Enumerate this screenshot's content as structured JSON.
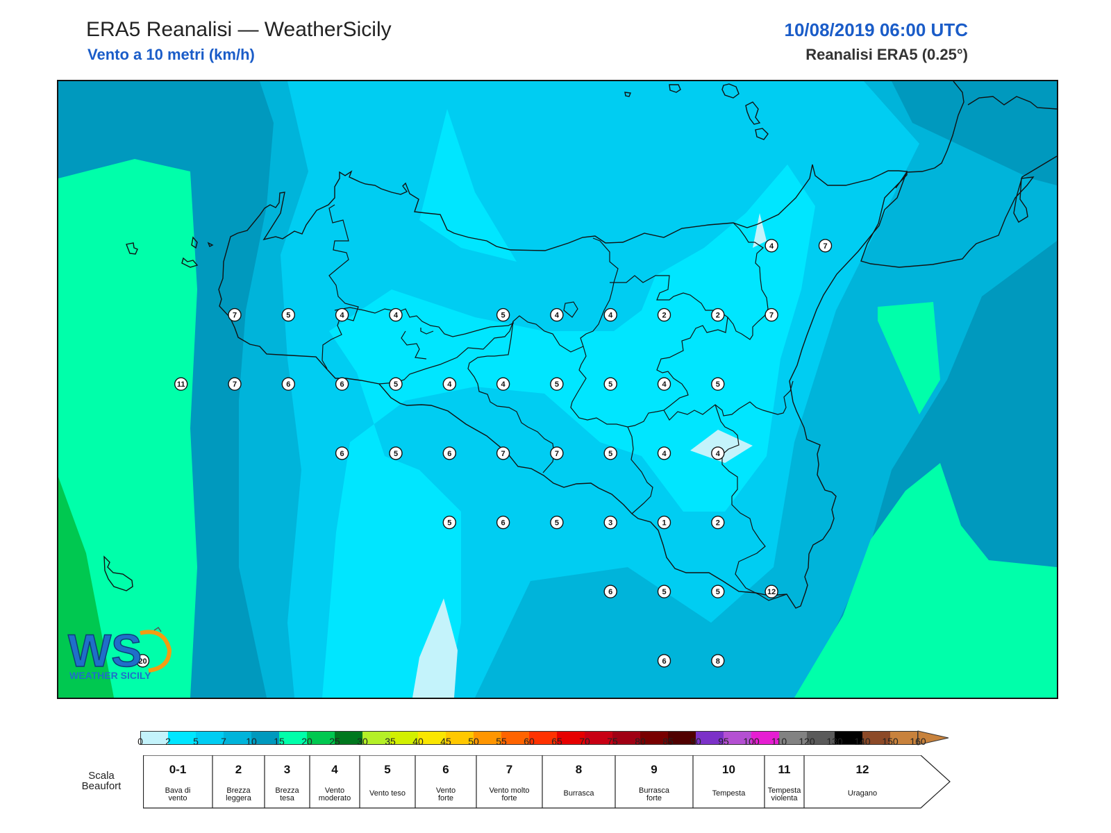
{
  "header": {
    "title": "ERA5 Reanalisi — WeatherSicily",
    "subtitle": "Vento a 10 metri (km/h)",
    "datetime": "10/08/2019 06:00 UTC",
    "source": "Reanalisi ERA5 (0.25°)"
  },
  "logo": {
    "letters": "WS",
    "text": "WEATHER SICILY"
  },
  "colors": {
    "band_0_2": "#c4f3fb",
    "band_2_5": "#00e6ff",
    "band_5_7": "#00cdf2",
    "band_7_10": "#00b4da",
    "band_10_15": "#0099be",
    "band_15_20": "#00ffaa",
    "band_20_25": "#00c850",
    "coastline": "#111111",
    "title_blue": "#1a5cc8"
  },
  "stations": [
    {
      "lon": 12.55,
      "lat": 38.05,
      "value": "7"
    },
    {
      "lon": 12.9,
      "lat": 38.05,
      "value": "5"
    },
    {
      "lon": 13.25,
      "lat": 38.05,
      "value": "4"
    },
    {
      "lon": 13.6,
      "lat": 38.05,
      "value": "4"
    },
    {
      "lon": 14.3,
      "lat": 38.05,
      "value": "5"
    },
    {
      "lon": 14.65,
      "lat": 38.05,
      "value": "4"
    },
    {
      "lon": 15.0,
      "lat": 38.05,
      "value": "4"
    },
    {
      "lon": 15.35,
      "lat": 38.05,
      "value": "2"
    },
    {
      "lon": 15.7,
      "lat": 38.05,
      "value": "2"
    },
    {
      "lon": 16.05,
      "lat": 38.05,
      "value": "7"
    },
    {
      "lon": 16.05,
      "lat": 38.5,
      "value": "4"
    },
    {
      "lon": 16.4,
      "lat": 38.5,
      "value": "7"
    },
    {
      "lon": 12.2,
      "lat": 37.6,
      "value": "11"
    },
    {
      "lon": 12.55,
      "lat": 37.6,
      "value": "7"
    },
    {
      "lon": 12.9,
      "lat": 37.6,
      "value": "6"
    },
    {
      "lon": 13.25,
      "lat": 37.6,
      "value": "6"
    },
    {
      "lon": 13.6,
      "lat": 37.6,
      "value": "5"
    },
    {
      "lon": 13.95,
      "lat": 37.6,
      "value": "4"
    },
    {
      "lon": 14.3,
      "lat": 37.6,
      "value": "4"
    },
    {
      "lon": 14.65,
      "lat": 37.6,
      "value": "5"
    },
    {
      "lon": 15.0,
      "lat": 37.6,
      "value": "5"
    },
    {
      "lon": 15.35,
      "lat": 37.6,
      "value": "4"
    },
    {
      "lon": 15.7,
      "lat": 37.6,
      "value": "5"
    },
    {
      "lon": 13.25,
      "lat": 37.15,
      "value": "6"
    },
    {
      "lon": 13.6,
      "lat": 37.15,
      "value": "5"
    },
    {
      "lon": 13.95,
      "lat": 37.15,
      "value": "6"
    },
    {
      "lon": 14.3,
      "lat": 37.15,
      "value": "7"
    },
    {
      "lon": 14.65,
      "lat": 37.15,
      "value": "7"
    },
    {
      "lon": 15.0,
      "lat": 37.15,
      "value": "5"
    },
    {
      "lon": 15.35,
      "lat": 37.15,
      "value": "4"
    },
    {
      "lon": 15.7,
      "lat": 37.15,
      "value": "4"
    },
    {
      "lon": 13.95,
      "lat": 36.7,
      "value": "5"
    },
    {
      "lon": 14.3,
      "lat": 36.7,
      "value": "6"
    },
    {
      "lon": 14.65,
      "lat": 36.7,
      "value": "5"
    },
    {
      "lon": 15.0,
      "lat": 36.7,
      "value": "3"
    },
    {
      "lon": 15.35,
      "lat": 36.7,
      "value": "1"
    },
    {
      "lon": 15.7,
      "lat": 36.7,
      "value": "2"
    },
    {
      "lon": 15.0,
      "lat": 36.25,
      "value": "6"
    },
    {
      "lon": 15.35,
      "lat": 36.25,
      "value": "5"
    },
    {
      "lon": 15.7,
      "lat": 36.25,
      "value": "5"
    },
    {
      "lon": 16.05,
      "lat": 36.25,
      "value": "12"
    },
    {
      "lon": 15.35,
      "lat": 35.8,
      "value": "6"
    },
    {
      "lon": 15.7,
      "lat": 35.8,
      "value": "8"
    },
    {
      "lon": 11.95,
      "lat": 35.8,
      "value": "20"
    }
  ],
  "colorbar": {
    "ticks": [
      "0",
      "2",
      "5",
      "7",
      "10",
      "15",
      "20",
      "25",
      "30",
      "35",
      "40",
      "45",
      "50",
      "55",
      "60",
      "65",
      "70",
      "75",
      "80",
      "85",
      "90",
      "95",
      "100",
      "110",
      "120",
      "130",
      "140",
      "150",
      "160"
    ],
    "colors": [
      "#c4f3fb",
      "#00e6ff",
      "#00cdf2",
      "#00b4da",
      "#0099be",
      "#00ffaa",
      "#00c850",
      "#00781e",
      "#b4f028",
      "#d2f000",
      "#fae600",
      "#ffc800",
      "#ff9600",
      "#ff6400",
      "#ff3200",
      "#e60000",
      "#c80014",
      "#a00014",
      "#780000",
      "#500000",
      "#7c32c8",
      "#b450d2",
      "#e61ed2",
      "#828282",
      "#5a5a5a",
      "#000000",
      "#8c4a28",
      "#c8823c"
    ]
  },
  "beaufort": {
    "title": "Scala Beaufort",
    "items": [
      {
        "num": "0-1",
        "desc": [
          "Bava di",
          "vento"
        ]
      },
      {
        "num": "2",
        "desc": [
          "Brezza",
          "leggera"
        ]
      },
      {
        "num": "3",
        "desc": [
          "Brezza",
          "tesa"
        ]
      },
      {
        "num": "4",
        "desc": [
          "Vento",
          "moderato"
        ]
      },
      {
        "num": "5",
        "desc": [
          "Vento teso"
        ]
      },
      {
        "num": "6",
        "desc": [
          "Vento",
          "forte"
        ]
      },
      {
        "num": "7",
        "desc": [
          "Vento molto",
          "forte"
        ]
      },
      {
        "num": "8",
        "desc": [
          "Burrasca"
        ]
      },
      {
        "num": "9",
        "desc": [
          "Burrasca",
          "forte"
        ]
      },
      {
        "num": "10",
        "desc": [
          "Tempesta"
        ]
      },
      {
        "num": "11",
        "desc": [
          "Tempesta",
          "violenta"
        ]
      },
      {
        "num": "12",
        "desc": [
          "Uragano"
        ]
      }
    ]
  }
}
